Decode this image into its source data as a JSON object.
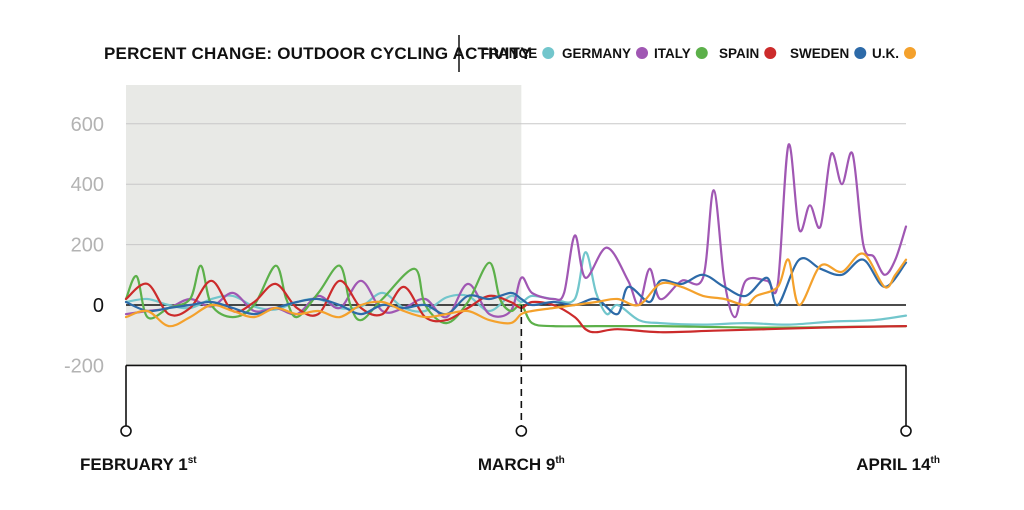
{
  "chart_data": {
    "type": "line",
    "title": "PERCENT CHANGE: OUTDOOR CYCLING ACTIVITY",
    "xlabel": "",
    "ylabel": "",
    "ylim": [
      -200,
      700
    ],
    "y_ticks": [
      600,
      400,
      200,
      0,
      -200
    ],
    "y_tick_labels": [
      "600",
      "400",
      "200",
      "0",
      "-200"
    ],
    "grid": true,
    "legend_position": "top-right",
    "shaded_region_days": [
      0,
      37
    ],
    "x_markers": [
      {
        "day": 0,
        "label": "FEBRUARY 1",
        "suffix": "st"
      },
      {
        "day": 37,
        "label": "MARCH 9",
        "suffix": "th"
      },
      {
        "day": 73,
        "label": "APRIL 14",
        "suffix": "th"
      }
    ],
    "series": [
      {
        "name": "FRANCE",
        "color": "#72c6cc",
        "points": [
          [
            0,
            10
          ],
          [
            2,
            20
          ],
          [
            4,
            0
          ],
          [
            6,
            -10
          ],
          [
            8,
            20
          ],
          [
            10,
            30
          ],
          [
            12,
            -5
          ],
          [
            14,
            -15
          ],
          [
            16,
            10
          ],
          [
            18,
            20
          ],
          [
            20,
            -10
          ],
          [
            22,
            -5
          ],
          [
            24,
            40
          ],
          [
            26,
            -10
          ],
          [
            28,
            -20
          ],
          [
            30,
            25
          ],
          [
            32,
            30
          ],
          [
            34,
            -20
          ],
          [
            36,
            30
          ],
          [
            37,
            10
          ],
          [
            38,
            30
          ],
          [
            40,
            20
          ],
          [
            42,
            20
          ],
          [
            43,
            175
          ],
          [
            44,
            40
          ],
          [
            45,
            -30
          ],
          [
            46,
            0
          ],
          [
            48,
            -50
          ],
          [
            50,
            -60
          ],
          [
            54,
            -65
          ],
          [
            58,
            -60
          ],
          [
            62,
            -65
          ],
          [
            66,
            -55
          ],
          [
            70,
            -50
          ],
          [
            73,
            -35
          ]
        ]
      },
      {
        "name": "GERMANY",
        "color": "#a057b3",
        "points": [
          [
            0,
            -30
          ],
          [
            2,
            -20
          ],
          [
            4,
            -10
          ],
          [
            6,
            20
          ],
          [
            8,
            -5
          ],
          [
            10,
            40
          ],
          [
            12,
            -20
          ],
          [
            14,
            -10
          ],
          [
            16,
            -30
          ],
          [
            18,
            30
          ],
          [
            20,
            -10
          ],
          [
            22,
            80
          ],
          [
            24,
            -20
          ],
          [
            26,
            -10
          ],
          [
            28,
            20
          ],
          [
            30,
            -40
          ],
          [
            32,
            70
          ],
          [
            34,
            -30
          ],
          [
            36,
            -20
          ],
          [
            37,
            90
          ],
          [
            38,
            40
          ],
          [
            40,
            20
          ],
          [
            41,
            40
          ],
          [
            42,
            230
          ],
          [
            43,
            90
          ],
          [
            45,
            190
          ],
          [
            47,
            80
          ],
          [
            48,
            0
          ],
          [
            49,
            120
          ],
          [
            50,
            20
          ],
          [
            52,
            80
          ],
          [
            54,
            90
          ],
          [
            55,
            380
          ],
          [
            56,
            80
          ],
          [
            57,
            -40
          ],
          [
            58,
            80
          ],
          [
            60,
            80
          ],
          [
            61,
            70
          ],
          [
            62,
            530
          ],
          [
            63,
            250
          ],
          [
            64,
            330
          ],
          [
            65,
            260
          ],
          [
            66,
            500
          ],
          [
            67,
            400
          ],
          [
            68,
            500
          ],
          [
            69,
            200
          ],
          [
            70,
            160
          ],
          [
            71,
            100
          ],
          [
            72,
            150
          ],
          [
            73,
            260
          ]
        ]
      },
      {
        "name": "ITALY",
        "color": "#5cb04a",
        "points": [
          [
            0,
            20
          ],
          [
            1,
            95
          ],
          [
            2,
            -40
          ],
          [
            4,
            -10
          ],
          [
            6,
            20
          ],
          [
            7,
            130
          ],
          [
            8,
            0
          ],
          [
            10,
            -40
          ],
          [
            12,
            0
          ],
          [
            14,
            130
          ],
          [
            15,
            20
          ],
          [
            16,
            -40
          ],
          [
            18,
            40
          ],
          [
            20,
            130
          ],
          [
            21,
            0
          ],
          [
            22,
            -50
          ],
          [
            24,
            20
          ],
          [
            27,
            120
          ],
          [
            28,
            0
          ],
          [
            30,
            -60
          ],
          [
            32,
            10
          ],
          [
            34,
            140
          ],
          [
            35,
            20
          ],
          [
            36,
            -20
          ],
          [
            37,
            0
          ],
          [
            38,
            -60
          ],
          [
            40,
            -70
          ],
          [
            44,
            -70
          ],
          [
            50,
            -70
          ],
          [
            60,
            -75
          ],
          [
            73,
            -70
          ]
        ]
      },
      {
        "name": "SPAIN",
        "color": "#cc2b2b",
        "points": [
          [
            0,
            20
          ],
          [
            2,
            70
          ],
          [
            4,
            -30
          ],
          [
            6,
            -10
          ],
          [
            8,
            80
          ],
          [
            10,
            -20
          ],
          [
            12,
            10
          ],
          [
            14,
            70
          ],
          [
            16,
            -10
          ],
          [
            18,
            -30
          ],
          [
            20,
            80
          ],
          [
            22,
            -10
          ],
          [
            24,
            -30
          ],
          [
            26,
            60
          ],
          [
            28,
            -40
          ],
          [
            30,
            -50
          ],
          [
            32,
            -10
          ],
          [
            34,
            30
          ],
          [
            36,
            10
          ],
          [
            37,
            -10
          ],
          [
            38,
            10
          ],
          [
            40,
            0
          ],
          [
            42,
            -40
          ],
          [
            43,
            -80
          ],
          [
            44,
            -90
          ],
          [
            46,
            -80
          ],
          [
            50,
            -90
          ],
          [
            55,
            -85
          ],
          [
            60,
            -80
          ],
          [
            65,
            -75
          ],
          [
            73,
            -70
          ]
        ]
      },
      {
        "name": "SWEDEN",
        "color": "#2d6aa8",
        "points": [
          [
            0,
            10
          ],
          [
            2,
            -20
          ],
          [
            4,
            -10
          ],
          [
            6,
            0
          ],
          [
            8,
            10
          ],
          [
            10,
            -10
          ],
          [
            12,
            -30
          ],
          [
            14,
            -10
          ],
          [
            16,
            10
          ],
          [
            18,
            20
          ],
          [
            20,
            0
          ],
          [
            22,
            -30
          ],
          [
            24,
            0
          ],
          [
            26,
            -10
          ],
          [
            28,
            0
          ],
          [
            30,
            -30
          ],
          [
            32,
            30
          ],
          [
            34,
            20
          ],
          [
            36,
            40
          ],
          [
            37,
            20
          ],
          [
            38,
            0
          ],
          [
            40,
            10
          ],
          [
            42,
            0
          ],
          [
            44,
            20
          ],
          [
            46,
            -30
          ],
          [
            47,
            60
          ],
          [
            49,
            10
          ],
          [
            50,
            80
          ],
          [
            52,
            70
          ],
          [
            54,
            100
          ],
          [
            56,
            60
          ],
          [
            58,
            30
          ],
          [
            60,
            90
          ],
          [
            61,
            0
          ],
          [
            63,
            150
          ],
          [
            65,
            120
          ],
          [
            67,
            100
          ],
          [
            69,
            150
          ],
          [
            71,
            60
          ],
          [
            73,
            140
          ]
        ]
      },
      {
        "name": "U.K.",
        "color": "#f4a12c",
        "points": [
          [
            0,
            -40
          ],
          [
            2,
            -20
          ],
          [
            4,
            -70
          ],
          [
            6,
            -40
          ],
          [
            8,
            0
          ],
          [
            10,
            -20
          ],
          [
            12,
            -40
          ],
          [
            14,
            -10
          ],
          [
            16,
            -30
          ],
          [
            18,
            -20
          ],
          [
            20,
            -40
          ],
          [
            22,
            0
          ],
          [
            24,
            10
          ],
          [
            26,
            -20
          ],
          [
            28,
            -40
          ],
          [
            30,
            -30
          ],
          [
            32,
            -20
          ],
          [
            34,
            -50
          ],
          [
            36,
            -60
          ],
          [
            37,
            -30
          ],
          [
            38,
            -20
          ],
          [
            40,
            -10
          ],
          [
            42,
            0
          ],
          [
            44,
            10
          ],
          [
            46,
            20
          ],
          [
            48,
            0
          ],
          [
            50,
            70
          ],
          [
            52,
            60
          ],
          [
            54,
            30
          ],
          [
            56,
            20
          ],
          [
            58,
            0
          ],
          [
            59,
            30
          ],
          [
            61,
            60
          ],
          [
            62,
            150
          ],
          [
            63,
            0
          ],
          [
            65,
            130
          ],
          [
            67,
            110
          ],
          [
            69,
            170
          ],
          [
            71,
            60
          ],
          [
            72,
            100
          ],
          [
            73,
            150
          ]
        ]
      }
    ]
  }
}
